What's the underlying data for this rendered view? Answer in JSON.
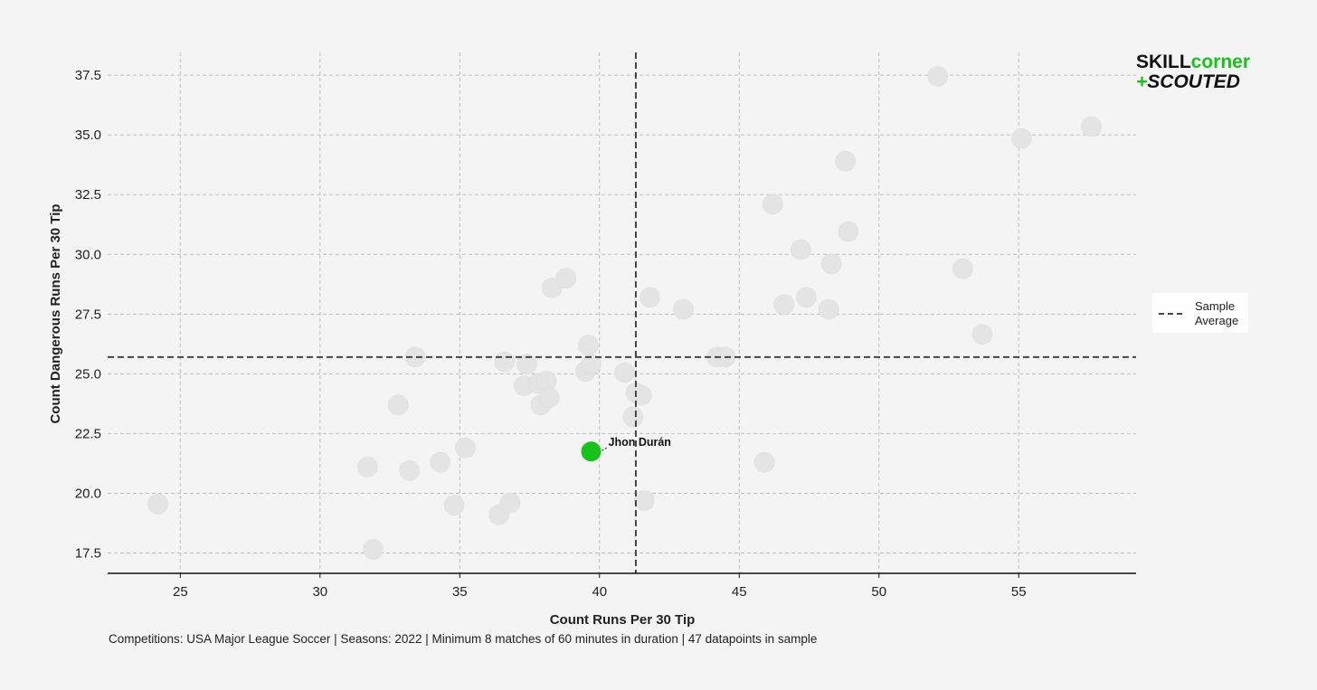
{
  "chart_data": {
    "type": "scatter",
    "xlabel": "Count Runs Per 30 Tip",
    "ylabel": "Count Dangerous Runs Per 30 Tip",
    "xlim": [
      22.4,
      59.2
    ],
    "ylim": [
      16.65,
      38.45
    ],
    "x_ticks": [
      "25",
      "30",
      "35",
      "40",
      "45",
      "50",
      "55"
    ],
    "x_tick_values": [
      25,
      30,
      35,
      40,
      45,
      50,
      55
    ],
    "y_ticks": [
      "17.5",
      "20.0",
      "22.5",
      "25.0",
      "27.5",
      "30.0",
      "32.5",
      "35.0",
      "37.5"
    ],
    "y_tick_values": [
      17.5,
      20.0,
      22.5,
      25.0,
      27.5,
      30.0,
      32.5,
      35.0,
      37.5
    ],
    "grid": true,
    "legend_position": "right",
    "sample_average": {
      "label": "Sample Average",
      "x": 41.3,
      "y": 25.7
    },
    "highlight": {
      "label": "Jhon Durán",
      "x": 39.7,
      "y": 21.75,
      "color": "#17c21a"
    },
    "points": [
      [
        24.2,
        19.55
      ],
      [
        31.7,
        21.1
      ],
      [
        31.9,
        17.65
      ],
      [
        32.8,
        23.7
      ],
      [
        33.2,
        20.95
      ],
      [
        33.4,
        25.7
      ],
      [
        34.3,
        21.3
      ],
      [
        34.8,
        19.5
      ],
      [
        35.2,
        21.9
      ],
      [
        36.4,
        19.1
      ],
      [
        36.6,
        25.5
      ],
      [
        36.8,
        19.6
      ],
      [
        37.3,
        24.5
      ],
      [
        37.4,
        25.4
      ],
      [
        37.8,
        24.6
      ],
      [
        37.9,
        23.7
      ],
      [
        38.1,
        24.7
      ],
      [
        38.2,
        24.0
      ],
      [
        38.3,
        28.6
      ],
      [
        38.8,
        29.0
      ],
      [
        39.5,
        25.1
      ],
      [
        39.6,
        26.2
      ],
      [
        39.7,
        25.4
      ],
      [
        40.9,
        25.05
      ],
      [
        41.2,
        23.2
      ],
      [
        41.3,
        24.2
      ],
      [
        41.5,
        24.1
      ],
      [
        41.6,
        19.7
      ],
      [
        41.8,
        28.2
      ],
      [
        43.0,
        27.7
      ],
      [
        44.2,
        25.7
      ],
      [
        44.5,
        25.7
      ],
      [
        45.9,
        21.3
      ],
      [
        46.2,
        32.1
      ],
      [
        46.6,
        27.9
      ],
      [
        47.2,
        30.2
      ],
      [
        47.4,
        28.2
      ],
      [
        48.2,
        27.7
      ],
      [
        48.3,
        29.6
      ],
      [
        48.8,
        33.9
      ],
      [
        48.9,
        30.95
      ],
      [
        52.1,
        37.45
      ],
      [
        53.0,
        29.4
      ],
      [
        53.7,
        26.65
      ],
      [
        55.1,
        34.85
      ],
      [
        57.6,
        35.35
      ]
    ],
    "point_color": "#e4e4e4",
    "footnote": "Competitions: USA Major League Soccer | Seasons: 2022 | Minimum 8 matches of 60 minutes in duration | 47 datapoints in sample"
  },
  "logo": {
    "part1": "SKILL",
    "part2": "corner",
    "part3": "+",
    "part4": "SCOUTED",
    "color_dark": "#111111",
    "color_green": "#17c21a"
  }
}
